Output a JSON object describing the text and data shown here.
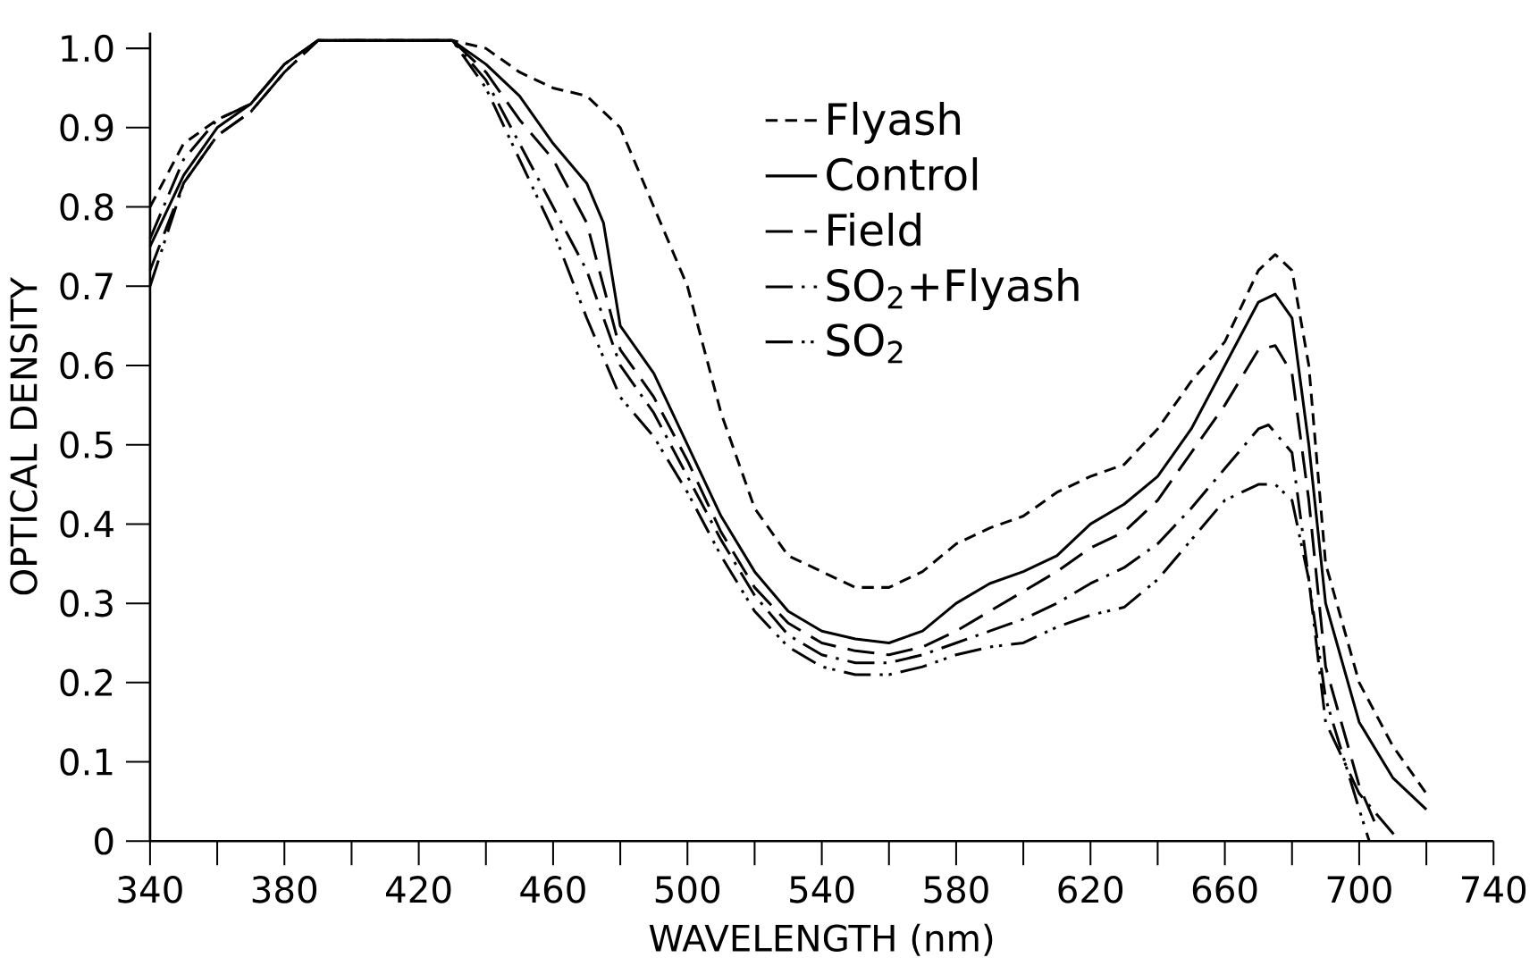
{
  "chart_data": {
    "type": "line",
    "xlabel": "WAVELENGTH (nm)",
    "ylabel": "OPTICAL DENSITY",
    "xlim": [
      340,
      740
    ],
    "ylim": [
      0,
      1.02
    ],
    "xticks": [
      340,
      380,
      420,
      460,
      500,
      540,
      580,
      620,
      660,
      700,
      740
    ],
    "yticks": [
      0,
      0.1,
      0.2,
      0.3,
      0.4,
      0.5,
      0.6,
      0.7,
      0.8,
      0.9,
      {
        "value": 1,
        "label": "1.0"
      }
    ],
    "legend": "top",
    "grid": false,
    "series": [
      {
        "name": "Flyash",
        "color": "#000000",
        "line_style": "dashed",
        "x": [
          340,
          350,
          360,
          370,
          380,
          390,
          400,
          410,
          420,
          430,
          440,
          450,
          460,
          470,
          480,
          490,
          500,
          510,
          520,
          530,
          540,
          550,
          560,
          570,
          580,
          590,
          600,
          610,
          620,
          630,
          640,
          650,
          660,
          670,
          675,
          680,
          685,
          690,
          700,
          710,
          720
        ],
        "values": [
          0.8,
          0.88,
          0.91,
          0.93,
          0.98,
          1.01,
          1.01,
          1.01,
          1.01,
          1.01,
          1.0,
          0.97,
          0.95,
          0.94,
          0.9,
          0.8,
          0.7,
          0.54,
          0.42,
          0.36,
          0.34,
          0.32,
          0.32,
          0.34,
          0.375,
          0.395,
          0.41,
          0.44,
          0.46,
          0.475,
          0.52,
          0.58,
          0.63,
          0.72,
          0.74,
          0.72,
          0.6,
          0.35,
          0.2,
          0.12,
          0.06
        ]
      },
      {
        "name": "Control",
        "color": "#000000",
        "line_style": "solid",
        "x": [
          340,
          350,
          360,
          370,
          380,
          390,
          400,
          410,
          420,
          430,
          440,
          450,
          460,
          470,
          475,
          480,
          490,
          500,
          510,
          520,
          530,
          540,
          550,
          560,
          570,
          580,
          590,
          600,
          610,
          620,
          630,
          640,
          650,
          660,
          670,
          675,
          680,
          685,
          690,
          700,
          710,
          720
        ],
        "values": [
          0.75,
          0.84,
          0.9,
          0.93,
          0.98,
          1.01,
          1.01,
          1.01,
          1.01,
          1.01,
          0.98,
          0.94,
          0.88,
          0.83,
          0.78,
          0.65,
          0.59,
          0.5,
          0.41,
          0.34,
          0.29,
          0.265,
          0.255,
          0.25,
          0.265,
          0.3,
          0.325,
          0.34,
          0.36,
          0.4,
          0.425,
          0.46,
          0.52,
          0.6,
          0.68,
          0.69,
          0.66,
          0.5,
          0.3,
          0.15,
          0.08,
          0.04
        ]
      },
      {
        "name": "Field",
        "color": "#000000",
        "line_style": "long dashed",
        "x": [
          340,
          350,
          360,
          370,
          380,
          390,
          400,
          410,
          420,
          430,
          440,
          450,
          460,
          470,
          480,
          490,
          500,
          510,
          520,
          530,
          540,
          550,
          560,
          570,
          580,
          590,
          600,
          610,
          620,
          630,
          640,
          650,
          660,
          670,
          675,
          680,
          685,
          690,
          700,
          705
        ],
        "values": [
          0.72,
          0.83,
          0.89,
          0.92,
          0.97,
          1.01,
          1.01,
          1.01,
          1.01,
          1.01,
          0.97,
          0.91,
          0.86,
          0.78,
          0.62,
          0.56,
          0.48,
          0.39,
          0.32,
          0.275,
          0.25,
          0.24,
          0.235,
          0.245,
          0.265,
          0.29,
          0.315,
          0.34,
          0.37,
          0.39,
          0.43,
          0.49,
          0.55,
          0.62,
          0.625,
          0.59,
          0.43,
          0.22,
          0.07,
          0.02
        ]
      },
      {
        "name": "SO$_{2}$+Flyash",
        "color": "#000000",
        "line_style": "dash dot",
        "x": [
          340,
          350,
          360,
          370,
          380,
          390,
          400,
          410,
          420,
          430,
          440,
          450,
          460,
          470,
          480,
          490,
          500,
          510,
          520,
          530,
          540,
          550,
          560,
          570,
          580,
          590,
          600,
          610,
          620,
          630,
          640,
          650,
          660,
          670,
          673,
          680,
          685,
          690,
          700,
          712
        ],
        "values": [
          0.76,
          0.86,
          0.91,
          0.93,
          0.98,
          1.01,
          1.01,
          1.01,
          1.01,
          1.01,
          0.96,
          0.88,
          0.8,
          0.72,
          0.6,
          0.54,
          0.46,
          0.38,
          0.31,
          0.26,
          0.235,
          0.225,
          0.225,
          0.235,
          0.25,
          0.265,
          0.28,
          0.3,
          0.325,
          0.345,
          0.375,
          0.42,
          0.47,
          0.52,
          0.525,
          0.49,
          0.33,
          0.15,
          0.06,
          0.0
        ]
      },
      {
        "name": "SO$_{2}$",
        "color": "#000000",
        "line_style": "dash dot dot",
        "x": [
          340,
          350,
          360,
          370,
          380,
          390,
          400,
          410,
          420,
          430,
          440,
          450,
          460,
          470,
          480,
          490,
          500,
          510,
          520,
          530,
          540,
          550,
          560,
          570,
          580,
          590,
          600,
          610,
          620,
          630,
          640,
          650,
          660,
          670,
          675,
          680,
          685,
          690,
          700,
          703
        ],
        "values": [
          0.7,
          0.83,
          0.89,
          0.92,
          0.97,
          1.01,
          1.01,
          1.01,
          1.01,
          1.01,
          0.95,
          0.86,
          0.77,
          0.66,
          0.56,
          0.51,
          0.44,
          0.36,
          0.29,
          0.245,
          0.22,
          0.21,
          0.21,
          0.22,
          0.235,
          0.245,
          0.25,
          0.27,
          0.285,
          0.295,
          0.33,
          0.38,
          0.43,
          0.45,
          0.45,
          0.43,
          0.33,
          0.18,
          0.04,
          0.0
        ]
      }
    ]
  }
}
